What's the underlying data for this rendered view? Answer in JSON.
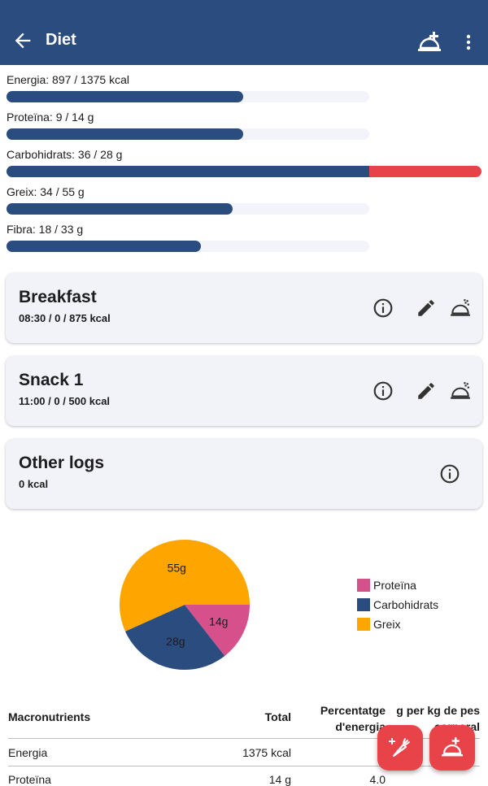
{
  "appbar": {
    "title": "Diet",
    "back_icon": "arrow-left-icon",
    "add_icon": "add-meal-icon",
    "more_icon": "more-vert-icon",
    "bg_color": "#2b4c7e"
  },
  "goals": [
    {
      "label": "Energia: 897 / 1375 kcal",
      "progress": 0.65
    },
    {
      "label": "Proteïna: 9 / 14 g",
      "progress": 0.65
    },
    {
      "label": "Carbohidrats: 36 / 28 g",
      "progress": 1.0,
      "over": true
    },
    {
      "label": "Greix: 34 / 55 g",
      "progress": 0.62
    },
    {
      "label": "Fibra: 18 / 33 g",
      "progress": 0.55
    }
  ],
  "meals": [
    {
      "title": "Breakfast",
      "subtitle": "08:30 /  0 / 875 kcal"
    },
    {
      "title": "Snack 1",
      "subtitle": "11:00 /  0 / 500 kcal"
    },
    {
      "title": "Other logs",
      "subtitle": " 0 kcal"
    }
  ],
  "chart_data": {
    "type": "pie",
    "categories": [
      "Proteïna",
      "Carbohidrats",
      "Greix"
    ],
    "values": [
      14,
      28,
      55
    ],
    "data_labels": [
      "14g",
      "28g",
      "55g"
    ],
    "colors": [
      "#d6508c",
      "#2b4c7e",
      "#ffa500"
    ],
    "legend": "right"
  },
  "table": {
    "headers": [
      "Macronutrients",
      "Total",
      "Percentatge d'energia",
      "g per kg de pes corporal"
    ],
    "rows": [
      [
        "Energia",
        "1375 kcal",
        "",
        ""
      ],
      [
        "Proteïna",
        "14 g",
        "4.0",
        ""
      ]
    ]
  },
  "fabs": {
    "left_icon": "add-food-icon",
    "right_icon": "add-meal-icon",
    "color": "#e84348"
  }
}
